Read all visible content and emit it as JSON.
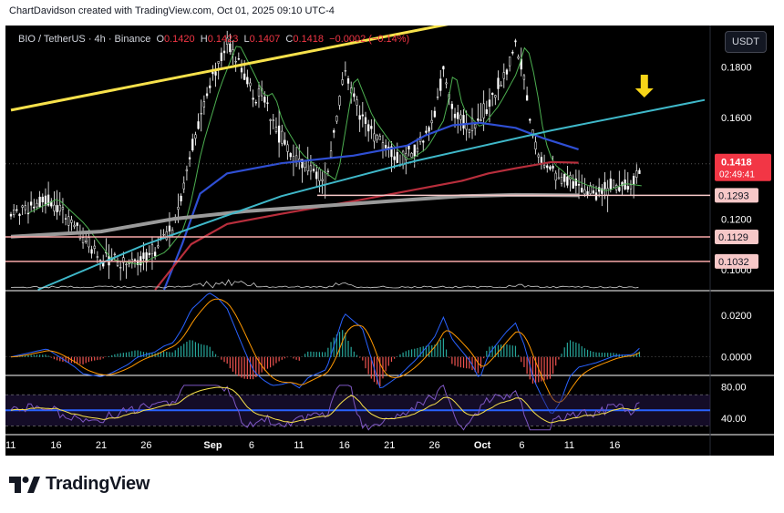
{
  "header": {
    "text": "ChartDavidson created with TradingView.com, Oct 01, 2025 09:10 UTC-4"
  },
  "legend": {
    "symbol": "BIO / TetherUS · 4h · Binance",
    "open_label": "O",
    "open": "0.1420",
    "high_label": "H",
    "high": "0.1423",
    "low_label": "L",
    "low": "0.1407",
    "close_label": "C",
    "close": "0.1418",
    "change": "−0.0002 (−0.14%)"
  },
  "quote_currency": "USDT",
  "brand": "TradingView",
  "colors": {
    "background": "#000000",
    "up": "#ffffff",
    "down": "#ffffff",
    "trendline_yellow": "#f7e14b",
    "curve_cyan": "#3fb8c9",
    "ma_blue": "#2f4fd4",
    "ma_red": "#b82e3c",
    "ma_gray": "#9a9a9a",
    "ma_green": "#4caf50",
    "level_line": "#f7a8a8",
    "price_badge": "#f23645",
    "arrow": "#f7d518"
  },
  "price_axis": {
    "ticks": [
      "0.1800",
      "0.1600",
      "0.1200",
      "0.1000"
    ],
    "current_price": "0.1418",
    "countdown": "02:49:41",
    "level_labels": [
      "0.1293",
      "0.1129",
      "0.1032"
    ]
  },
  "macd_axis": {
    "ticks": [
      "0.0200",
      "0.0000"
    ]
  },
  "rsi_axis": {
    "ticks": [
      "80.00",
      "40.00"
    ]
  },
  "time_axis": {
    "ticks": [
      "11",
      "16",
      "21",
      "26",
      "Sep",
      "6",
      "11",
      "16",
      "21",
      "26",
      "Oct",
      "6",
      "11",
      "16"
    ]
  },
  "chart_data": {
    "type": "candlestick",
    "symbol": "BIO / TetherUS",
    "interval": "4h",
    "exchange": "Binance",
    "ylim": [
      0.092,
      0.195
    ],
    "price_series": [
      {
        "t": 0,
        "p": 0.121
      },
      {
        "t": 4,
        "p": 0.128
      },
      {
        "t": 7,
        "p": 0.118
      },
      {
        "t": 10,
        "p": 0.104
      },
      {
        "t": 13,
        "p": 0.102
      },
      {
        "t": 16,
        "p": 0.107
      },
      {
        "t": 18,
        "p": 0.116
      },
      {
        "t": 19,
        "p": 0.13
      },
      {
        "t": 20,
        "p": 0.148
      },
      {
        "t": 22,
        "p": 0.172
      },
      {
        "t": 24,
        "p": 0.19
      },
      {
        "t": 26,
        "p": 0.176
      },
      {
        "t": 27,
        "p": 0.168
      },
      {
        "t": 28,
        "p": 0.17
      },
      {
        "t": 29,
        "p": 0.158
      },
      {
        "t": 31,
        "p": 0.146
      },
      {
        "t": 33,
        "p": 0.14
      },
      {
        "t": 35,
        "p": 0.135
      },
      {
        "t": 37,
        "p": 0.178
      },
      {
        "t": 39,
        "p": 0.16
      },
      {
        "t": 41,
        "p": 0.15
      },
      {
        "t": 43,
        "p": 0.143
      },
      {
        "t": 45,
        "p": 0.148
      },
      {
        "t": 47,
        "p": 0.16
      },
      {
        "t": 48,
        "p": 0.18
      },
      {
        "t": 49,
        "p": 0.163
      },
      {
        "t": 51,
        "p": 0.156
      },
      {
        "t": 53,
        "p": 0.165
      },
      {
        "t": 55,
        "p": 0.178
      },
      {
        "t": 56,
        "p": 0.19
      },
      {
        "t": 57,
        "p": 0.175
      },
      {
        "t": 58,
        "p": 0.152
      },
      {
        "t": 59,
        "p": 0.142
      },
      {
        "t": 61,
        "p": 0.136
      },
      {
        "t": 63,
        "p": 0.133
      },
      {
        "t": 65,
        "p": 0.131
      },
      {
        "t": 67,
        "p": 0.134
      },
      {
        "t": 69,
        "p": 0.133
      },
      {
        "t": 70,
        "p": 0.1418
      }
    ],
    "horizontal_levels": [
      0.1293,
      0.1129,
      0.1032
    ],
    "moving_averages": [
      {
        "color": "blue",
        "points": [
          [
            17,
            0.092
          ],
          [
            19,
            0.11
          ],
          [
            21,
            0.13
          ],
          [
            24,
            0.138
          ],
          [
            30,
            0.142
          ],
          [
            38,
            0.145
          ],
          [
            44,
            0.149
          ],
          [
            46,
            0.153
          ],
          [
            49,
            0.157
          ],
          [
            52,
            0.158
          ],
          [
            56,
            0.156
          ],
          [
            59,
            0.152
          ],
          [
            63,
            0.1475
          ]
        ]
      },
      {
        "color": "red",
        "points": [
          [
            16,
            0.092
          ],
          [
            20,
            0.11
          ],
          [
            24,
            0.118
          ],
          [
            30,
            0.122
          ],
          [
            38,
            0.127
          ],
          [
            44,
            0.131
          ],
          [
            50,
            0.135
          ],
          [
            53,
            0.138
          ],
          [
            56,
            0.14
          ],
          [
            60,
            0.1425
          ],
          [
            63,
            0.1422
          ]
        ]
      },
      {
        "color": "gray",
        "points": [
          [
            0,
            0.113
          ],
          [
            10,
            0.115
          ],
          [
            18,
            0.12
          ],
          [
            26,
            0.123
          ],
          [
            34,
            0.125
          ],
          [
            42,
            0.127
          ],
          [
            50,
            0.129
          ],
          [
            56,
            0.1295
          ],
          [
            63,
            0.1293
          ]
        ]
      }
    ],
    "yellow_trendline": [
      [
        0,
        0.163
      ],
      [
        50,
        0.198
      ]
    ],
    "cyan_curve": [
      [
        3,
        0.092
      ],
      [
        15,
        0.11
      ],
      [
        30,
        0.129
      ],
      [
        45,
        0.143
      ],
      [
        60,
        0.155
      ],
      [
        77,
        0.167
      ]
    ],
    "macd": {
      "ylim": [
        -0.008,
        0.03
      ]
    },
    "rsi": {
      "ylim": [
        20,
        90
      ],
      "bands": [
        30,
        70
      ]
    }
  }
}
